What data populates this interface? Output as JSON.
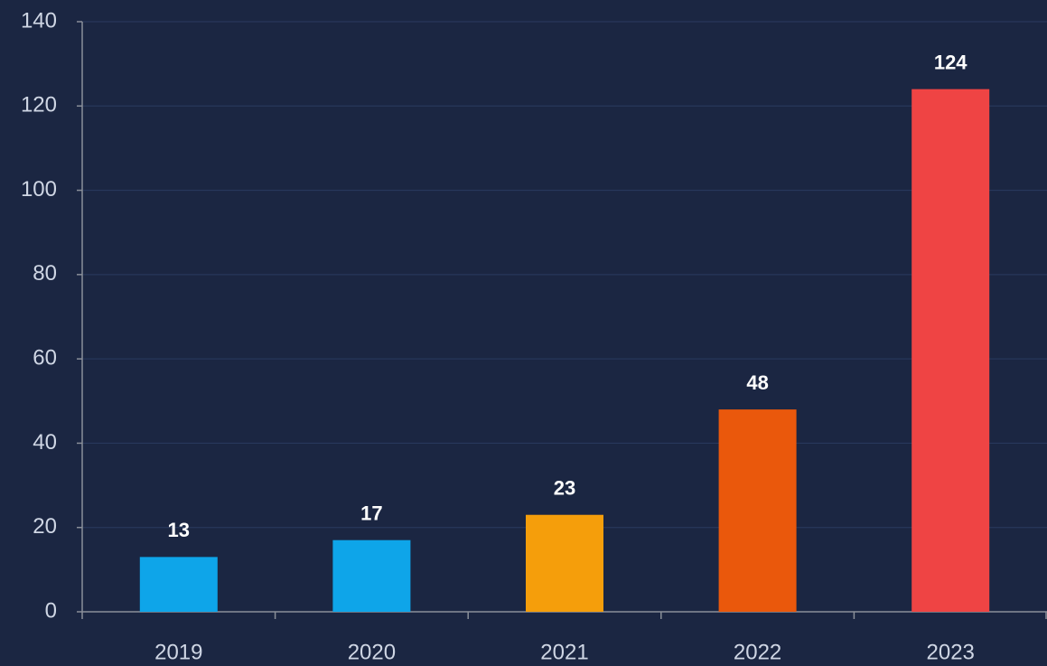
{
  "chart_data": {
    "type": "bar",
    "categories": [
      "2019",
      "2020",
      "2021",
      "2022",
      "2023"
    ],
    "values": [
      13,
      17,
      23,
      48,
      124
    ],
    "colors": [
      "#0ea5e9",
      "#0ea5e9",
      "#f59e0b",
      "#ea580c",
      "#ef4444"
    ],
    "ylim": [
      0,
      140
    ],
    "yticks": [
      0,
      20,
      40,
      60,
      80,
      100,
      120,
      140
    ],
    "grid": true
  }
}
